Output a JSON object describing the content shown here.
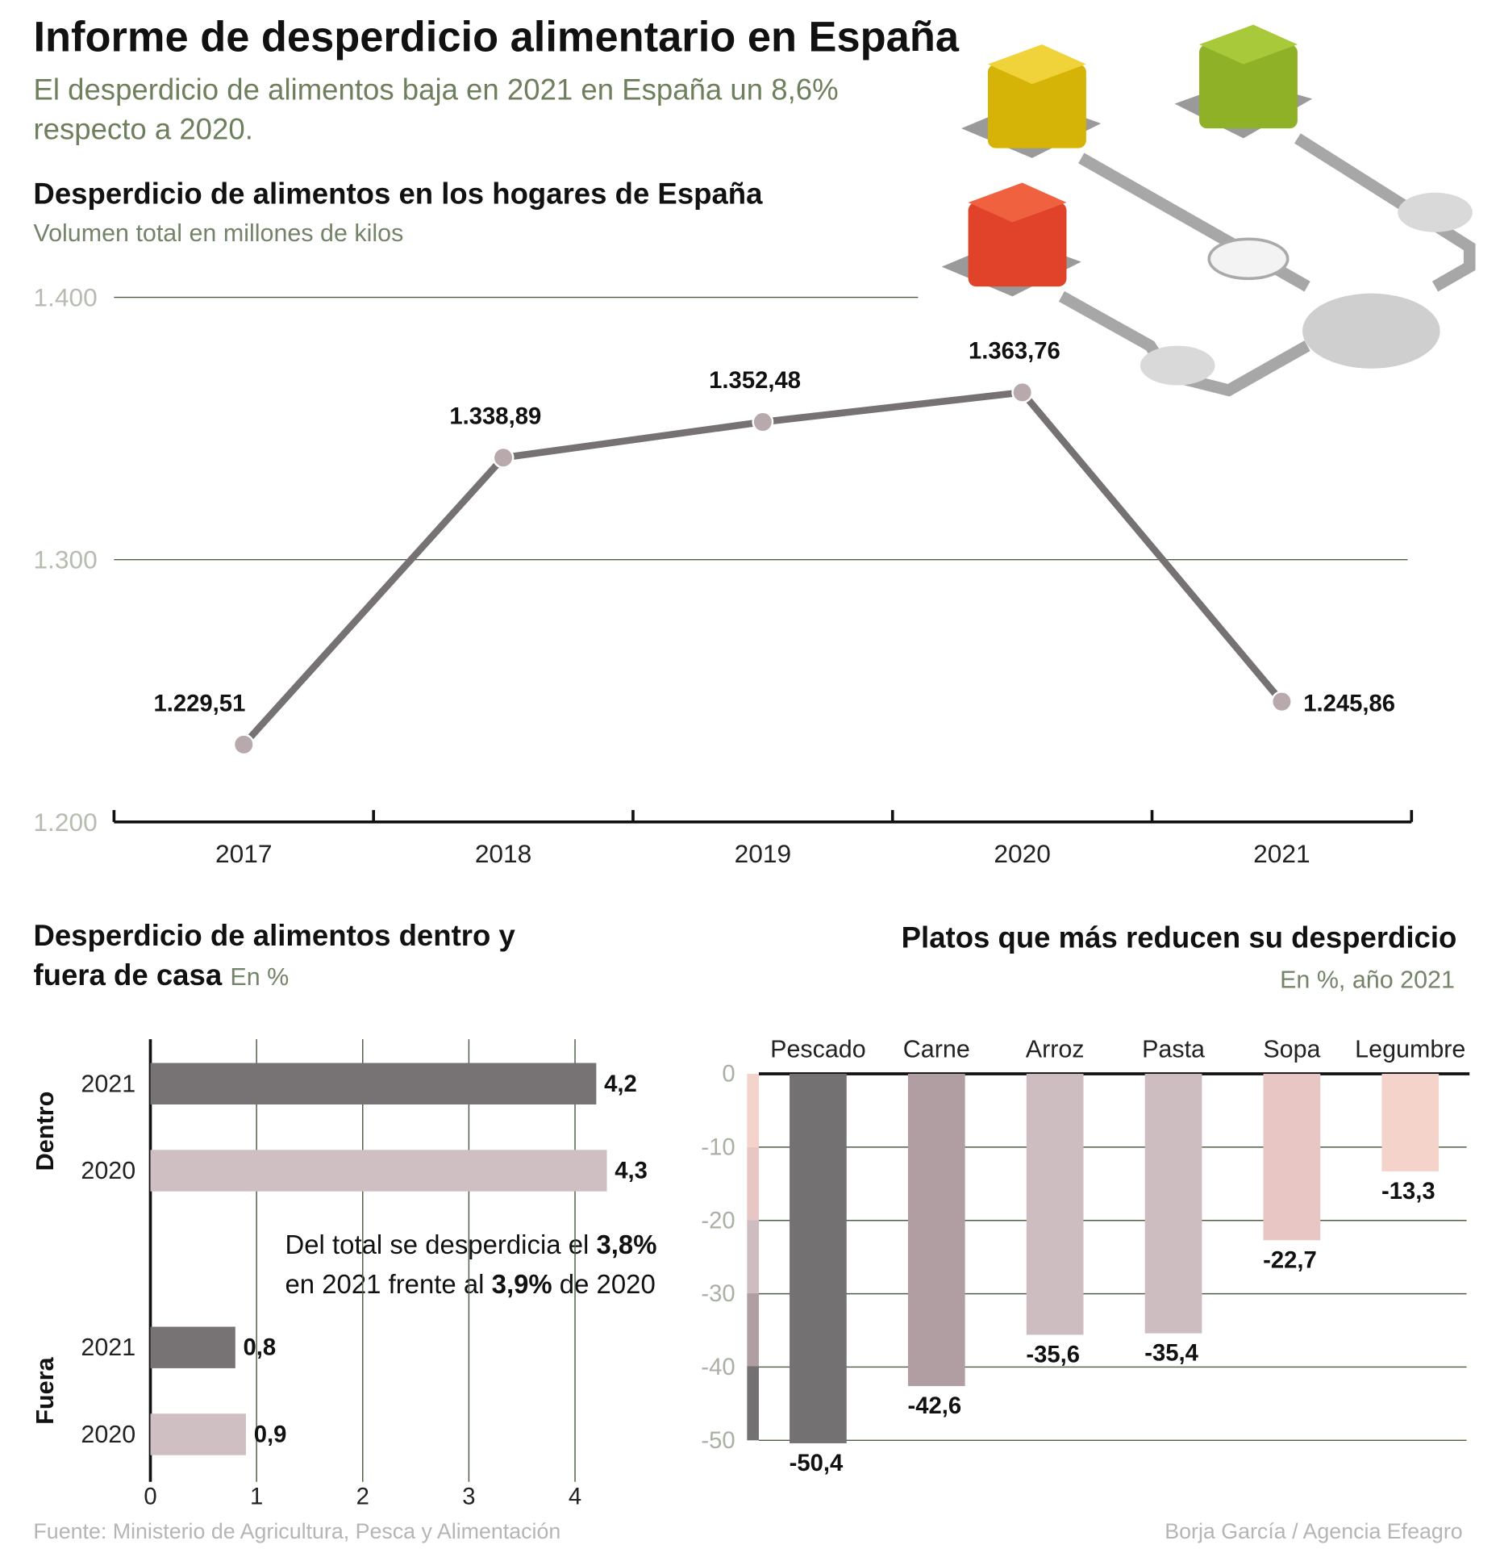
{
  "header": {
    "title": "Informe de desperdicio alimentario en España",
    "subtitle": "El desperdicio de alimentos baja en 2021 en España un 8,6% respecto a 2020."
  },
  "chart_data": [
    {
      "type": "line",
      "title": "Desperdicio de alimentos en los hogares de España",
      "subtitle": "Volumen total en millones de kilos",
      "categories": [
        "2017",
        "2018",
        "2019",
        "2020",
        "2021"
      ],
      "values": [
        1229.51,
        1338.89,
        1352.48,
        1363.76,
        1245.86
      ],
      "value_labels": [
        "1.229,51",
        "1.338,89",
        "1.352,48",
        "1.363,76",
        "1.245,86"
      ],
      "color": "#767273",
      "marker_color": "#b8a9ad",
      "ylim": [
        1200,
        1400
      ],
      "yticks": [
        {
          "value": 1200,
          "label": "1.200"
        },
        {
          "value": 1300,
          "label": "1.300"
        },
        {
          "value": 1400,
          "label": "1.400"
        }
      ],
      "grid": true
    },
    {
      "type": "hbar",
      "title": "Desperdicio de alimentos dentro y fuera de casa",
      "subtitle": "En %",
      "groups": [
        {
          "name": "Dentro",
          "categories": [
            "2021",
            "2020"
          ],
          "values": [
            4.2,
            4.3
          ],
          "value_labels": [
            "4,2",
            "4,3"
          ]
        },
        {
          "name": "Fuera",
          "categories": [
            "2021",
            "2020"
          ],
          "values": [
            0.8,
            0.9
          ],
          "value_labels": [
            "0,8",
            "0,9"
          ]
        }
      ],
      "colors": [
        "#777374",
        "#cfbfc2"
      ],
      "xlim": [
        0,
        4.3
      ],
      "xticks": [
        0,
        1,
        2,
        3,
        4
      ],
      "grid": true,
      "annotation": [
        "Del total se desperdicia el ",
        "3,8%",
        " en 2021 frente al ",
        "3,9%",
        " de 2020"
      ]
    },
    {
      "type": "column",
      "title": "Platos que más reducen su desperdicio",
      "subtitle": "En %, año 2021",
      "categories": [
        "Pescado",
        "Carne",
        "Arroz",
        "Pasta",
        "Sopa",
        "Legumbre"
      ],
      "values": [
        -50.4,
        -42.6,
        -35.6,
        -35.4,
        -22.7,
        -13.3
      ],
      "value_labels": [
        "-50,4",
        "-42,6",
        "-35,6",
        "-35,4",
        "-22,7",
        "-13,3"
      ],
      "colors": [
        "#747172",
        "#b09ea3",
        "#cdbcc0",
        "#cdbcc0",
        "#e7c6c4",
        "#f4d3cb"
      ],
      "ylim": [
        -50,
        0
      ],
      "yticks": [
        0,
        -10,
        -20,
        -30,
        -40,
        -50
      ],
      "grid": true
    }
  ],
  "footer": {
    "source": "Fuente:  Ministerio de Agricultura, Pesca y Alimentación",
    "credit": "Borja García / Agencia Efeagro"
  }
}
